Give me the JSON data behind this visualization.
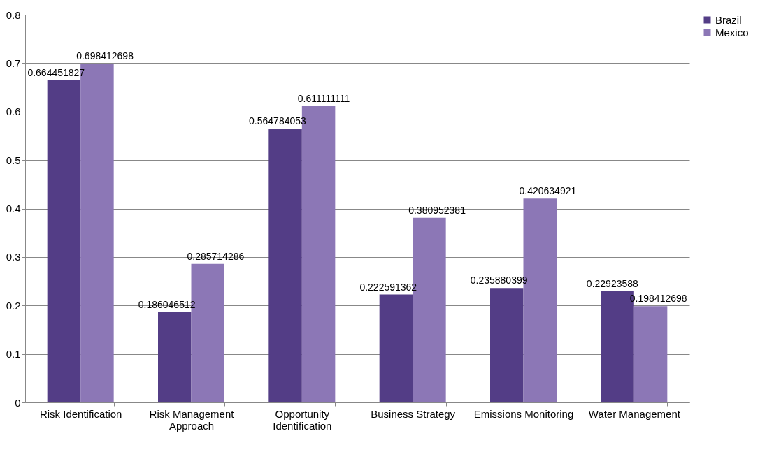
{
  "chart_data": {
    "type": "bar",
    "categories": [
      "Risk Identification",
      "Risk Management Approach",
      "Opportunity Identification",
      "Business Strategy",
      "Emissions Monitoring",
      "Water Management"
    ],
    "series": [
      {
        "name": "Brazil",
        "color": "#533d86",
        "values": [
          0.664451827,
          0.186046512,
          0.564784053,
          0.222591362,
          0.235880399,
          0.22923588
        ]
      },
      {
        "name": "Mexico",
        "color": "#8c77b6",
        "values": [
          0.698412698,
          0.285714286,
          0.611111111,
          0.380952381,
          0.420634921,
          0.198412698
        ]
      }
    ],
    "ylim": [
      0,
      0.8
    ],
    "yticks": [
      0,
      0.1,
      0.2,
      0.3,
      0.4,
      0.5,
      0.6,
      0.7,
      0.8
    ],
    "grid": "y",
    "legend": "right",
    "data_labels": true
  }
}
